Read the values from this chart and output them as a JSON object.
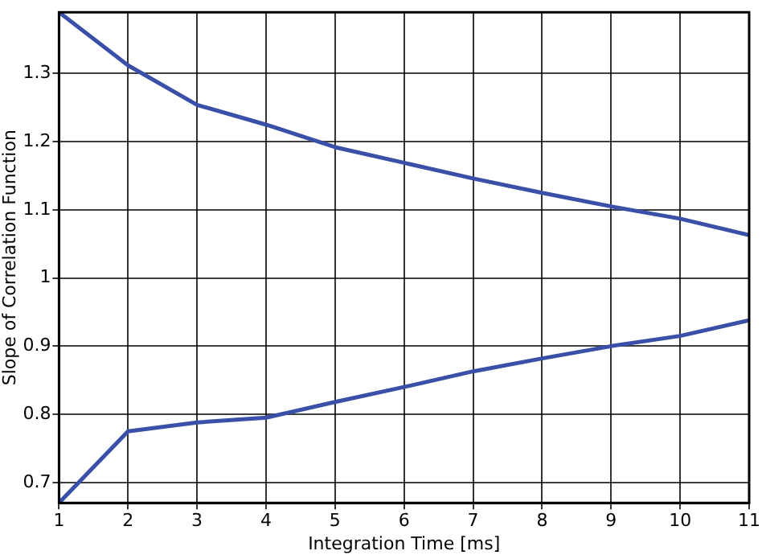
{
  "chart_data": {
    "type": "line",
    "xlabel": "Integration Time [ms]",
    "ylabel": "Slope of Correlation Function",
    "x": [
      1,
      2,
      3,
      4,
      5,
      6,
      7,
      8,
      9,
      10,
      11
    ],
    "series": [
      {
        "color": "#3a50a8",
        "values": [
          1.39,
          1.312,
          1.254,
          1.225,
          1.192,
          1.169,
          1.146,
          1.125,
          1.105,
          1.087,
          1.063
        ]
      },
      {
        "color": "#3a50a8",
        "values": [
          0.67,
          0.775,
          0.788,
          0.795,
          0.818,
          0.84,
          0.863,
          0.882,
          0.9,
          0.915,
          0.938
        ]
      }
    ],
    "xlim": [
      1,
      11
    ],
    "xticks": [
      1,
      2,
      3,
      4,
      5,
      6,
      7,
      8,
      9,
      10,
      11
    ],
    "ylim": [
      0.67,
      1.39
    ],
    "yticks": [
      0.7,
      0.8,
      0.9,
      1,
      1.1,
      1.2,
      1.3
    ],
    "grid": true,
    "legend": false,
    "marker": "none",
    "line_style": "solid"
  }
}
